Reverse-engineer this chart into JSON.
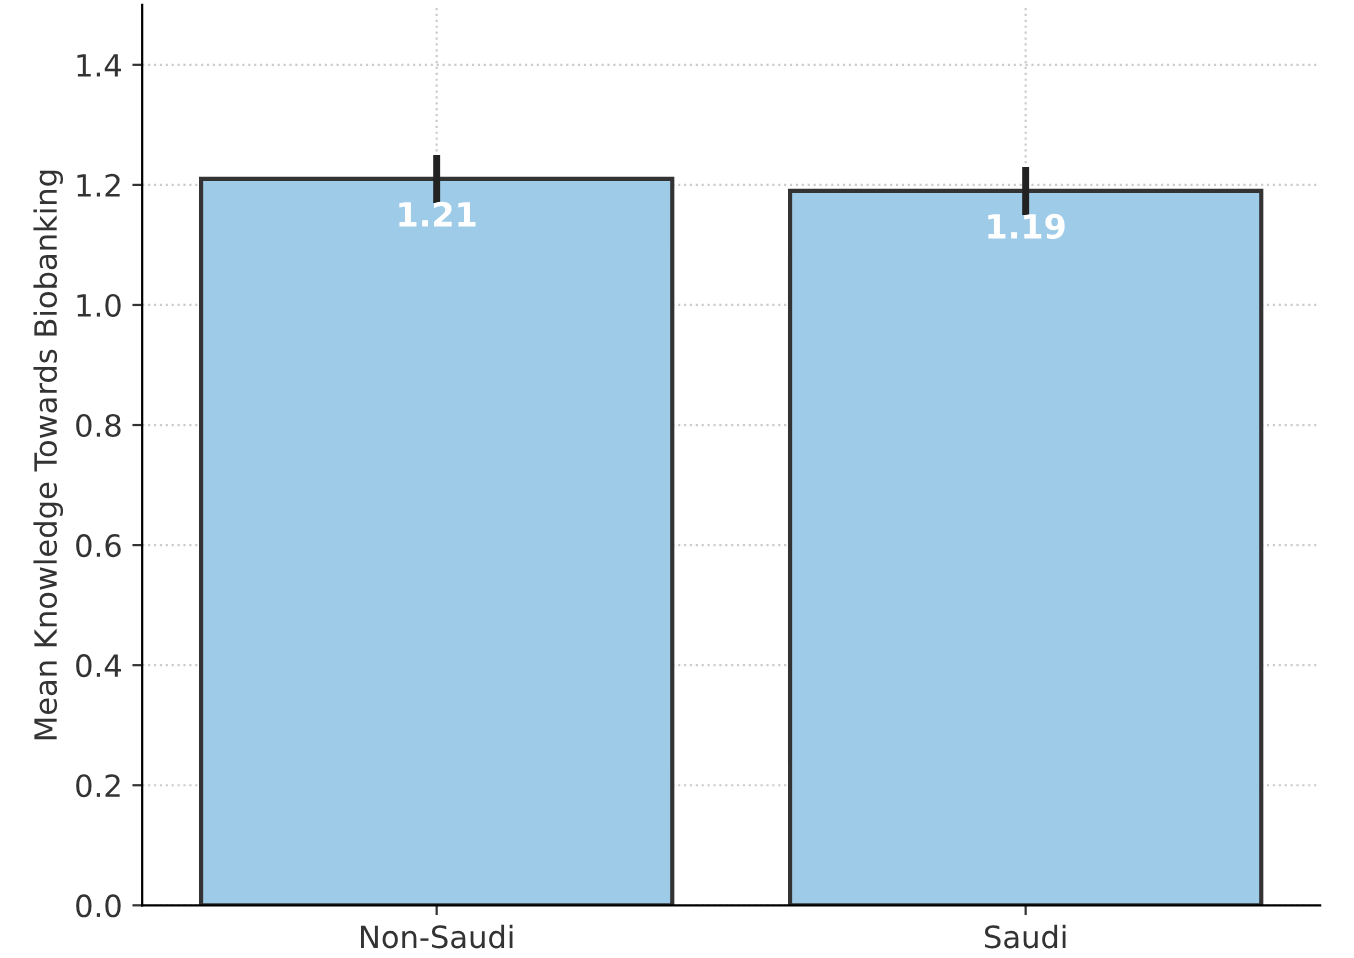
{
  "chart_data": {
    "type": "bar",
    "ylabel": "Mean Knowledge Towards Biobanking",
    "categories": [
      "Non-Saudi",
      "Saudi"
    ],
    "values": [
      1.21,
      1.19
    ],
    "errors": [
      0.04,
      0.04
    ],
    "color": "#9ecbe8",
    "ylim": [
      0,
      1.5
    ],
    "yticks": [
      {
        "value": 0,
        "label": "0.0"
      },
      0.2,
      0.4,
      0.6,
      0.8,
      {
        "value": 1,
        "label": "1.0"
      },
      1.2,
      1.4
    ],
    "grid": true,
    "data_labels": true
  }
}
